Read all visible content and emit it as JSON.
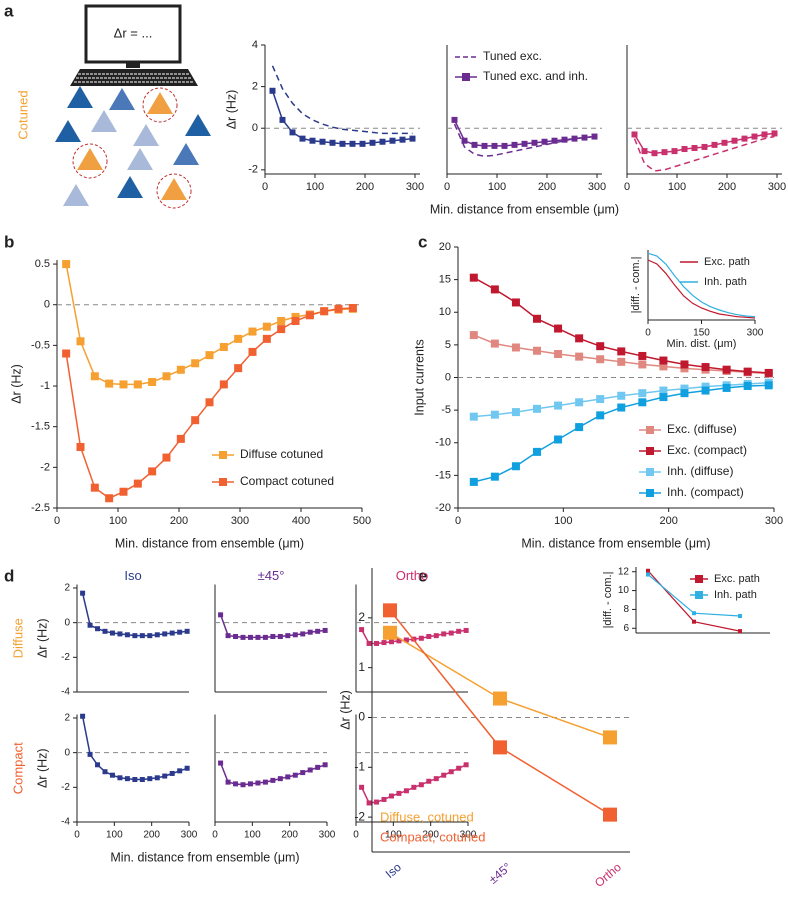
{
  "panel_labels": [
    "a",
    "b",
    "c",
    "d",
    "e"
  ],
  "illustration": {
    "screen_text": "Δr = ...",
    "label": "Cotuned"
  },
  "chart_data": [
    {
      "type": "line",
      "ylabel": "Δr (Hz)",
      "x": [
        15,
        35,
        55,
        75,
        95,
        115,
        135,
        155,
        175,
        195,
        215,
        235,
        255,
        275,
        295
      ],
      "xlim": [
        0,
        310
      ],
      "ylim": [
        -2.2,
        4
      ],
      "xticks": [
        0,
        100,
        200,
        300
      ],
      "yticks": [
        -2,
        0,
        2,
        4
      ],
      "hline": 0,
      "series": [
        {
          "color": "#2b3a8c",
          "dashed": true,
          "values": [
            3.0,
            1.9,
            1.2,
            0.7,
            0.4,
            0.2,
            0.05,
            -0.05,
            -0.1,
            -0.15,
            -0.2,
            -0.25,
            -0.25,
            -0.25,
            -0.25
          ]
        },
        {
          "color": "#2b3a8c",
          "marker": "square",
          "values": [
            1.8,
            0.4,
            -0.2,
            -0.5,
            -0.6,
            -0.65,
            -0.7,
            -0.75,
            -0.75,
            -0.75,
            -0.7,
            -0.65,
            -0.6,
            -0.55,
            -0.5
          ]
        }
      ]
    },
    {
      "type": "line",
      "xlabel": "Min. distance from ensemble (μm)",
      "x": [
        15,
        35,
        55,
        75,
        95,
        115,
        135,
        155,
        175,
        195,
        215,
        235,
        255,
        275,
        295
      ],
      "xlim": [
        0,
        310
      ],
      "ylim": [
        -2.2,
        4
      ],
      "xticks": [
        0,
        100,
        200,
        300
      ],
      "hline": 0,
      "legend": "upper left",
      "series": [
        {
          "name": "Tuned exc.",
          "color": "#6a2c91",
          "dashed": true,
          "values": [
            0.2,
            -0.9,
            -1.25,
            -1.35,
            -1.3,
            -1.2,
            -1.1,
            -1.0,
            -0.9,
            -0.8,
            -0.7,
            -0.6,
            -0.5,
            -0.45,
            -0.4
          ]
        },
        {
          "name": "Tuned exc. and inh.",
          "color": "#6a2c91",
          "marker": "square",
          "values": [
            0.4,
            -0.6,
            -0.8,
            -0.85,
            -0.85,
            -0.85,
            -0.8,
            -0.75,
            -0.7,
            -0.65,
            -0.6,
            -0.55,
            -0.5,
            -0.45,
            -0.4
          ]
        }
      ]
    },
    {
      "type": "line",
      "x": [
        15,
        35,
        55,
        75,
        95,
        115,
        135,
        155,
        175,
        195,
        215,
        235,
        255,
        275,
        295
      ],
      "xlim": [
        0,
        310
      ],
      "ylim": [
        -2.2,
        4
      ],
      "xticks": [
        0,
        100,
        200,
        300
      ],
      "hline": 0,
      "series": [
        {
          "color": "#c8306e",
          "dashed": true,
          "values": [
            -0.5,
            -1.7,
            -2.05,
            -2.0,
            -1.85,
            -1.7,
            -1.55,
            -1.4,
            -1.25,
            -1.1,
            -0.95,
            -0.8,
            -0.65,
            -0.5,
            -0.4
          ]
        },
        {
          "color": "#c8306e",
          "marker": "square",
          "values": [
            -0.3,
            -1.1,
            -1.2,
            -1.15,
            -1.1,
            -1.0,
            -0.95,
            -0.9,
            -0.8,
            -0.7,
            -0.6,
            -0.5,
            -0.4,
            -0.3,
            -0.25
          ]
        }
      ]
    },
    {
      "type": "line",
      "ylabel": "Δr (Hz)",
      "xlabel": "Min. distance from ensemble (μm)",
      "x": [
        15,
        38.5,
        62,
        85.5,
        109,
        132.5,
        156,
        179.5,
        203,
        226.5,
        250,
        273.5,
        297,
        320.5,
        344,
        367.5,
        391,
        414.5,
        438,
        461.5,
        485
      ],
      "xlim": [
        0,
        500
      ],
      "ylim": [
        -2.5,
        0.55
      ],
      "xticks": [
        0,
        100,
        200,
        300,
        400,
        500
      ],
      "yticks": [
        -2.5,
        -2,
        -1.5,
        -1,
        -0.5,
        0,
        0.5
      ],
      "hline": 0,
      "legend": "lower right",
      "series": [
        {
          "name": "Diffuse cotuned",
          "color": "#f5a030",
          "marker": "square",
          "values": [
            0.5,
            -0.45,
            -0.88,
            -0.97,
            -0.98,
            -0.98,
            -0.95,
            -0.88,
            -0.8,
            -0.72,
            -0.62,
            -0.52,
            -0.42,
            -0.33,
            -0.27,
            -0.2,
            -0.15,
            -0.12,
            -0.08,
            -0.06,
            -0.05
          ]
        },
        {
          "name": "Compact cotuned",
          "color": "#f06030",
          "marker": "square",
          "values": [
            -0.6,
            -1.75,
            -2.25,
            -2.38,
            -2.3,
            -2.2,
            -2.05,
            -1.88,
            -1.65,
            -1.42,
            -1.2,
            -0.98,
            -0.78,
            -0.58,
            -0.42,
            -0.3,
            -0.2,
            -0.13,
            -0.08,
            -0.05,
            -0.04
          ]
        }
      ]
    },
    {
      "type": "line",
      "ylabel": "Input currents",
      "xlabel": "Min. distance from ensemble (μm)",
      "x": [
        15,
        35,
        55,
        75,
        95,
        115,
        135,
        155,
        175,
        195,
        215,
        235,
        255,
        275,
        295
      ],
      "xlim": [
        0,
        300
      ],
      "ylim": [
        -20,
        20
      ],
      "xticks": [
        0,
        100,
        200,
        300
      ],
      "yticks": [
        -20,
        -15,
        -10,
        -5,
        0,
        5,
        10,
        15,
        20
      ],
      "hline": 0,
      "legend": "lower right",
      "series": [
        {
          "name": "Exc. (diffuse)",
          "color": "#e08880",
          "marker": "square",
          "values": [
            6.5,
            5.2,
            4.6,
            4.1,
            3.6,
            3.2,
            2.8,
            2.4,
            2.0,
            1.7,
            1.4,
            1.2,
            1.0,
            0.8,
            0.6
          ]
        },
        {
          "name": "Exc. (compact)",
          "color": "#c0182e",
          "marker": "square",
          "values": [
            15.3,
            13.5,
            11.5,
            9.0,
            7.5,
            6.0,
            4.8,
            4.0,
            3.3,
            2.6,
            2.0,
            1.6,
            1.2,
            0.9,
            0.7
          ]
        },
        {
          "name": "Inh. (diffuse)",
          "color": "#70c8f0",
          "marker": "square",
          "values": [
            -6.0,
            -5.7,
            -5.3,
            -4.8,
            -4.3,
            -3.8,
            -3.3,
            -2.8,
            -2.4,
            -2.0,
            -1.7,
            -1.4,
            -1.2,
            -1.0,
            -0.8
          ]
        },
        {
          "name": "Inh. (compact)",
          "color": "#10a0e0",
          "marker": "square",
          "values": [
            -16,
            -15.2,
            -13.6,
            -11.4,
            -9.5,
            -7.6,
            -5.8,
            -4.6,
            -3.8,
            -3.0,
            -2.4,
            -2.0,
            -1.6,
            -1.3,
            -1.2
          ]
        }
      ]
    },
    {
      "type": "line",
      "ylabel": "|diff. - com.|",
      "xlabel": "Min. dist. (μm)",
      "x": [
        0,
        25,
        50,
        75,
        100,
        125,
        150,
        175,
        200,
        225,
        250,
        275,
        300
      ],
      "xlim": [
        0,
        300
      ],
      "ylim": [
        0,
        10.5
      ],
      "xticks": [
        0,
        150,
        300
      ],
      "legend": "upper right",
      "series": [
        {
          "name": "Exc. path",
          "color": "#c0182e",
          "values": [
            9,
            8.4,
            7,
            5.2,
            3.6,
            2.5,
            1.8,
            1.3,
            0.9,
            0.7,
            0.5,
            0.4,
            0.3
          ]
        },
        {
          "name": "Inh. path",
          "color": "#30b0e0",
          "values": [
            10,
            9.6,
            8.4,
            6.6,
            5,
            3.7,
            2.7,
            2.0,
            1.5,
            1.1,
            0.8,
            0.6,
            0.5
          ]
        }
      ]
    },
    {
      "type": "line",
      "title": "Iso",
      "title_color": "#2b3a8c",
      "row_label": "Diffuse",
      "row_label_color": "#f5a030",
      "ylabel": "Δr (Hz)",
      "x": [
        15,
        35,
        55,
        75,
        95,
        115,
        135,
        155,
        175,
        195,
        215,
        235,
        255,
        275,
        295
      ],
      "xlim": [
        0,
        300
      ],
      "ylim": [
        -4,
        2.2
      ],
      "yticks": [
        -4,
        -2,
        0,
        2
      ],
      "hline": 0,
      "series": [
        {
          "color": "#2b3a8c",
          "marker": "square",
          "values": [
            1.7,
            -0.15,
            -0.35,
            -0.5,
            -0.6,
            -0.65,
            -0.7,
            -0.75,
            -0.75,
            -0.75,
            -0.7,
            -0.65,
            -0.6,
            -0.55,
            -0.5
          ]
        }
      ]
    },
    {
      "type": "line",
      "title": "±45°",
      "title_color": "#6a2c91",
      "x": [
        15,
        35,
        55,
        75,
        95,
        115,
        135,
        155,
        175,
        195,
        215,
        235,
        255,
        275,
        295
      ],
      "xlim": [
        0,
        300
      ],
      "ylim": [
        -4,
        2.2
      ],
      "hline": 0,
      "series": [
        {
          "color": "#6a2c91",
          "marker": "square",
          "values": [
            0.45,
            -0.75,
            -0.8,
            -0.85,
            -0.85,
            -0.85,
            -0.85,
            -0.8,
            -0.8,
            -0.75,
            -0.7,
            -0.65,
            -0.55,
            -0.5,
            -0.45
          ]
        }
      ]
    },
    {
      "type": "line",
      "title": "Ortho",
      "title_color": "#c8306e",
      "x": [
        15,
        35,
        55,
        75,
        95,
        115,
        135,
        155,
        175,
        195,
        215,
        235,
        255,
        275,
        295
      ],
      "xlim": [
        0,
        300
      ],
      "ylim": [
        -4,
        2.2
      ],
      "hline": 0,
      "series": [
        {
          "color": "#c8306e",
          "marker": "square",
          "values": [
            -0.4,
            -1.2,
            -1.2,
            -1.15,
            -1.1,
            -1.05,
            -1.0,
            -0.95,
            -0.9,
            -0.8,
            -0.75,
            -0.65,
            -0.6,
            -0.5,
            -0.45
          ]
        }
      ]
    },
    {
      "type": "line",
      "row_label": "Compact",
      "row_label_color": "#f06030",
      "ylabel": "Δr (Hz)",
      "x": [
        15,
        35,
        55,
        75,
        95,
        115,
        135,
        155,
        175,
        195,
        215,
        235,
        255,
        275,
        295
      ],
      "xlim": [
        0,
        300
      ],
      "ylim": [
        -4,
        2.2
      ],
      "xticks": [
        0,
        100,
        200,
        300
      ],
      "yticks": [
        -4,
        -2,
        0,
        2
      ],
      "hline": 0,
      "series": [
        {
          "color": "#2b3a8c",
          "marker": "square",
          "values": [
            2.1,
            -0.1,
            -0.7,
            -1.1,
            -1.3,
            -1.45,
            -1.5,
            -1.55,
            -1.55,
            -1.5,
            -1.45,
            -1.35,
            -1.2,
            -1.05,
            -0.9
          ]
        }
      ]
    },
    {
      "type": "line",
      "xlabel": "Min. distance from ensemble (μm)",
      "x": [
        15,
        35,
        55,
        75,
        95,
        115,
        135,
        155,
        175,
        195,
        215,
        235,
        255,
        275,
        295
      ],
      "xlim": [
        0,
        300
      ],
      "ylim": [
        -4,
        2.2
      ],
      "xticks": [
        0,
        100,
        200,
        300
      ],
      "hline": 0,
      "series": [
        {
          "color": "#6a2c91",
          "marker": "square",
          "values": [
            -0.6,
            -1.7,
            -1.8,
            -1.85,
            -1.8,
            -1.75,
            -1.7,
            -1.6,
            -1.5,
            -1.4,
            -1.3,
            -1.15,
            -1.0,
            -0.85,
            -0.7
          ]
        }
      ]
    },
    {
      "type": "line",
      "x": [
        15,
        35,
        55,
        75,
        95,
        115,
        135,
        155,
        175,
        195,
        215,
        235,
        255,
        275,
        295
      ],
      "xlim": [
        0,
        300
      ],
      "ylim": [
        -4,
        2.2
      ],
      "xticks": [
        0,
        100,
        200,
        300
      ],
      "hline": 0,
      "series": [
        {
          "color": "#c8306e",
          "marker": "square",
          "values": [
            -2.0,
            -2.9,
            -2.85,
            -2.7,
            -2.5,
            -2.35,
            -2.2,
            -2.0,
            -1.85,
            -1.65,
            -1.5,
            -1.3,
            -1.1,
            -0.9,
            -0.7
          ]
        }
      ]
    },
    {
      "type": "line",
      "ylabel": "Δr (Hz)",
      "categories": [
        "Iso",
        "±45°",
        "Ortho"
      ],
      "category_colors": [
        "#2b3a8c",
        "#6a2c91",
        "#c8306e"
      ],
      "ylim": [
        -2.7,
        3.0
      ],
      "yticks": [
        -2,
        -1,
        0,
        1,
        2
      ],
      "hline": 0,
      "legend": "lower left",
      "legend_text_colored": true,
      "series": [
        {
          "name": "Diffuse, cotuned",
          "color": "#f5a030",
          "marker": "square",
          "values": [
            1.7,
            0.38,
            -0.4
          ]
        },
        {
          "name": "Compact, cotuned",
          "color": "#f06030",
          "marker": "square",
          "values": [
            2.15,
            -0.6,
            -1.95
          ]
        }
      ]
    },
    {
      "type": "line",
      "ylabel": "|diff. - com.|",
      "ylim": [
        5.5,
        12.5
      ],
      "yticks": [
        6,
        8,
        10,
        12
      ],
      "legend": "upper right",
      "series": [
        {
          "name": "Exc. path",
          "color": "#c0182e",
          "marker": "square",
          "values": [
            12.1,
            6.7,
            5.7
          ]
        },
        {
          "name": "Inh. path",
          "color": "#30b0e0",
          "marker": "square",
          "values": [
            11.7,
            7.6,
            7.3
          ]
        }
      ]
    }
  ]
}
